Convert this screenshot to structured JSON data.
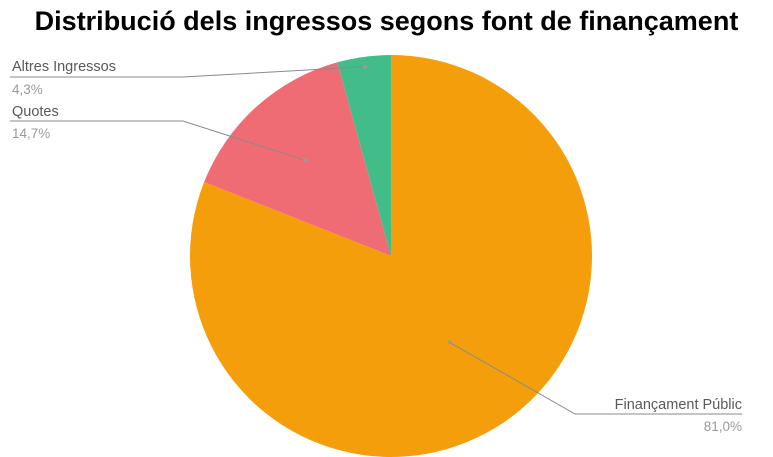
{
  "chart_data": {
    "type": "pie",
    "title": "Distribució dels ingressos segons font de finançament",
    "start_angle": "top",
    "direction": "clockwise",
    "slices": [
      {
        "name": "Finançament Públic",
        "value": 81.0,
        "display": "81,0%",
        "color": "#f59e0b"
      },
      {
        "name": "Quotes",
        "value": 14.7,
        "display": "14,7%",
        "color": "#f06c75"
      },
      {
        "name": "Altres Ingressos",
        "value": 4.3,
        "display": "4,3%",
        "color": "#42bd8a"
      }
    ],
    "legend": "none",
    "labels": "outside with leader lines"
  }
}
